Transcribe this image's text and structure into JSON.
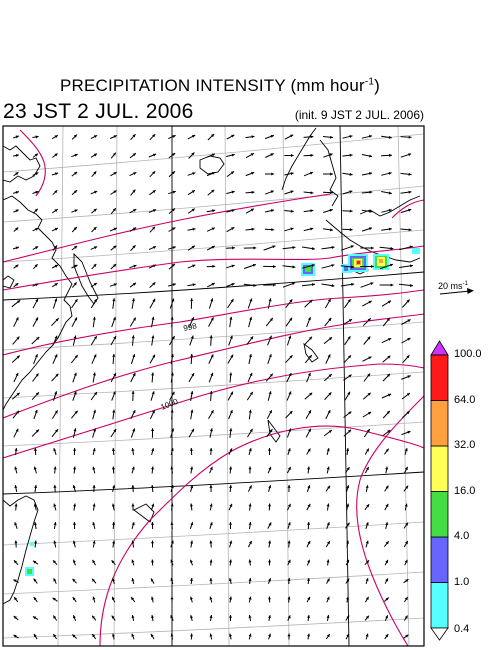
{
  "title": {
    "main": "PRECIPITATION INTENSITY (mm hour",
    "exponent": "-1",
    "close": ")"
  },
  "valid_time": "23 JST 2 JUL. 2006",
  "init_time": "(init. 9 JST 2 JUL. 2006)",
  "wind_reference": {
    "value": "20 ms",
    "exponent": "-1"
  },
  "isobar_labels": [
    "998",
    "1000"
  ],
  "colorbar": {
    "levels": [
      "0.4",
      "1.0",
      "4.0",
      "16.0",
      "32.0",
      "64.0",
      "100.0"
    ],
    "colors": [
      "#55ffff",
      "#6666ff",
      "#44dd44",
      "#ffff55",
      "#ffa040",
      "#ff1a1a",
      "#cc33ff"
    ]
  },
  "colors": {
    "isobar": "#cc0066",
    "grid": "#b4b4b4",
    "frame": "#000000"
  }
}
